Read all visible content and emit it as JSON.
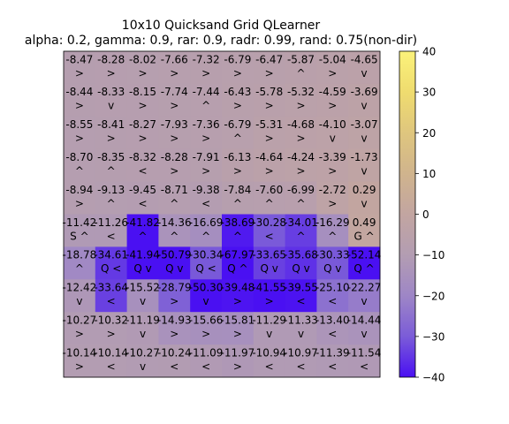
{
  "chart_data": {
    "type": "heatmap",
    "title": "10x10 Quicksand Grid QLearner",
    "subtitle": "alpha: 0.2, gamma: 0.9, rar: 0.9, radr: 0.99, rand: 0.75(non-dir)",
    "colorbar": {
      "min": -40,
      "max": 40,
      "ticks": [
        40,
        30,
        20,
        10,
        0,
        -10,
        -20,
        -30,
        -40
      ]
    },
    "rows": [
      {
        "values": [
          -8.47,
          -8.28,
          -8.02,
          -7.66,
          -7.32,
          -6.79,
          -6.47,
          -5.87,
          -5.04,
          -4.65
        ],
        "labels": [
          "-8.47",
          "-8.28",
          "-8.02",
          "-7.66",
          "-7.32",
          "-6.79",
          "-6.47",
          "-5.87",
          "-5.04",
          "-4.65"
        ],
        "symbols": [
          ">",
          ">",
          ">",
          ">",
          ">",
          ">",
          ">",
          "^",
          ">",
          "v"
        ]
      },
      {
        "values": [
          -8.44,
          -8.33,
          -8.15,
          -7.74,
          -7.44,
          -6.43,
          -5.78,
          -5.32,
          -4.59,
          -3.69
        ],
        "labels": [
          "-8.44",
          "-8.33",
          "-8.15",
          "-7.74",
          "-7.44",
          "-6.43",
          "-5.78",
          "-5.32",
          "-4.59",
          "-3.69"
        ],
        "symbols": [
          ">",
          "v",
          ">",
          ">",
          "^",
          ">",
          ">",
          ">",
          ">",
          "v"
        ]
      },
      {
        "values": [
          -8.55,
          -8.41,
          -8.27,
          -7.93,
          -7.36,
          -6.79,
          -5.31,
          -4.68,
          -4.1,
          -3.07
        ],
        "labels": [
          "-8.55",
          "-8.41",
          "-8.27",
          "-7.93",
          "-7.36",
          "-6.79",
          "-5.31",
          "-4.68",
          "-4.10",
          "-3.07"
        ],
        "symbols": [
          ">",
          ">",
          ">",
          ">",
          ">",
          "^",
          ">",
          ">",
          "v",
          "v"
        ]
      },
      {
        "values": [
          -8.7,
          -8.35,
          -8.32,
          -8.28,
          -7.91,
          -6.13,
          -4.64,
          -4.24,
          -3.39,
          -1.73
        ],
        "labels": [
          "-8.70",
          "-8.35",
          "-8.32",
          "-8.28",
          "-7.91",
          "-6.13",
          "-4.64",
          "-4.24",
          "-3.39",
          "-1.73"
        ],
        "symbols": [
          "^",
          "^",
          "<",
          ">",
          ">",
          ">",
          ">",
          ">",
          ">",
          "v"
        ]
      },
      {
        "values": [
          -8.94,
          -9.13,
          -9.45,
          -8.71,
          -9.38,
          -7.84,
          -7.6,
          -6.99,
          -2.72,
          0.29
        ],
        "labels": [
          "-8.94",
          "-9.13",
          "-9.45",
          "-8.71",
          "-9.38",
          "-7.84",
          "-7.60",
          "-6.99",
          "-2.72",
          "0.29"
        ],
        "symbols": [
          ">",
          "^",
          "<",
          "^",
          "<",
          "^",
          "^",
          "^",
          ">",
          "v"
        ]
      },
      {
        "values": [
          -11.42,
          -11.26,
          -41.82,
          -14.36,
          -16.69,
          -38.69,
          -30.28,
          -34.01,
          -16.29,
          0.49
        ],
        "labels": [
          "-11.42",
          "-11.26",
          "-41.82",
          "-14.36",
          "-16.69",
          "-38.69",
          "-30.28",
          "-34.01",
          "-16.29",
          "0.49"
        ],
        "symbols": [
          "S ^",
          "<",
          "^",
          "^",
          "^",
          "^",
          "<",
          "^",
          "^",
          "G ^"
        ]
      },
      {
        "values": [
          -18.78,
          -34.61,
          -41.94,
          -50.79,
          -30.34,
          -67.97,
          -33.65,
          -35.68,
          -30.33,
          -52.14
        ],
        "labels": [
          "-18.78",
          "-34.61",
          "-41.94",
          "-50.79",
          "-30.34",
          "-67.97",
          "-33.65",
          "-35.68",
          "-30.33",
          "-52.14"
        ],
        "symbols": [
          "^",
          "Q <",
          "Q v",
          "Q v",
          "Q <",
          "Q ^",
          "Q v",
          "Q v",
          "Q v",
          "Q ^"
        ]
      },
      {
        "values": [
          -12.42,
          -33.64,
          -15.52,
          -28.79,
          -50.3,
          -39.48,
          -41.55,
          -39.55,
          -25.1,
          -22.27
        ],
        "labels": [
          "-12.42",
          "-33.64",
          "-15.52",
          "-28.79",
          "-50.30",
          "-39.48",
          "-41.55",
          "-39.55",
          "-25.10",
          "-22.27"
        ],
        "symbols": [
          "v",
          "<",
          "v",
          ">",
          "v",
          ">",
          ">",
          "<",
          "<",
          "v"
        ]
      },
      {
        "values": [
          -10.27,
          -10.32,
          -11.19,
          -14.93,
          -15.66,
          -15.81,
          -11.29,
          -11.33,
          -13.4,
          -14.44
        ],
        "labels": [
          "-10.27",
          "-10.32",
          "-11.19",
          "-14.93",
          "-15.66",
          "-15.81",
          "-11.29",
          "-11.33",
          "-13.40",
          "-14.44"
        ],
        "symbols": [
          ">",
          ">",
          "v",
          ">",
          ">",
          ">",
          "v",
          "v",
          "<",
          "v"
        ]
      },
      {
        "values": [
          -10.14,
          -10.14,
          -10.27,
          -10.24,
          -11.09,
          -11.97,
          -10.94,
          -10.97,
          -11.39,
          -11.54
        ],
        "labels": [
          "-10.14",
          "-10.14",
          "-10.27",
          "-10.24",
          "-11.09",
          "-11.97",
          "-10.94",
          "-10.97",
          "-11.39",
          "-11.54"
        ],
        "symbols": [
          ">",
          "<",
          "v",
          "<",
          "<",
          ">",
          "<",
          "<",
          "<",
          "<"
        ]
      }
    ]
  }
}
